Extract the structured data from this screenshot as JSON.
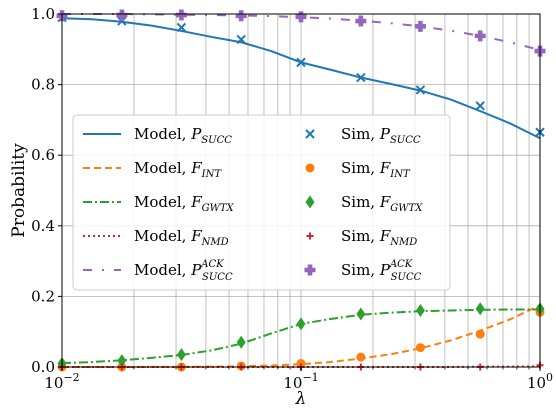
{
  "chart_data": {
    "type": "line",
    "title": "",
    "xlabel": "λ",
    "ylabel": "Probability",
    "xscale": "log",
    "xlim": [
      0.01,
      1.0
    ],
    "ylim": [
      0.0,
      1.0
    ],
    "grid": true,
    "legend_position": "center-left",
    "x_ticks": [
      {
        "value": 0.01,
        "base": "10",
        "exp": "−2"
      },
      {
        "value": 0.1,
        "base": "10",
        "exp": "−1"
      },
      {
        "value": 1.0,
        "base": "10",
        "exp": "0"
      }
    ],
    "y_ticks": [
      {
        "value": 0.0,
        "label": "0.0"
      },
      {
        "value": 0.2,
        "label": "0.2"
      },
      {
        "value": 0.4,
        "label": "0.4"
      },
      {
        "value": 0.6,
        "label": "0.6"
      },
      {
        "value": 0.8,
        "label": "0.8"
      },
      {
        "value": 1.0,
        "label": "1.0"
      }
    ],
    "model_x": [
      0.01,
      0.0133,
      0.0178,
      0.0237,
      0.0316,
      0.0422,
      0.0562,
      0.075,
      0.1,
      0.133,
      0.178,
      0.237,
      0.316,
      0.422,
      0.562,
      0.75,
      1.0
    ],
    "sim_x": [
      0.01,
      0.0178,
      0.0316,
      0.0562,
      0.1,
      0.178,
      0.316,
      0.562,
      1.0
    ],
    "series": [
      {
        "name": "Model, P",
        "sub": "SUCC",
        "sup": "",
        "kind": "model",
        "color": "#1f77b4",
        "dash": "solid",
        "values": [
          0.988,
          0.985,
          0.978,
          0.967,
          0.952,
          0.935,
          0.92,
          0.895,
          0.863,
          0.842,
          0.82,
          0.802,
          0.783,
          0.758,
          0.725,
          0.69,
          0.648
        ]
      },
      {
        "name": "Model, F",
        "sub": "INT",
        "sup": "",
        "kind": "model",
        "color": "#ff7f0e",
        "dash": "dashed",
        "values": [
          0.0,
          0.0,
          0.0,
          0.0002,
          0.0005,
          0.001,
          0.002,
          0.004,
          0.008,
          0.014,
          0.024,
          0.036,
          0.053,
          0.075,
          0.103,
          0.135,
          0.175
        ]
      },
      {
        "name": "Model, F",
        "sub": "GWTX",
        "sup": "",
        "kind": "model",
        "color": "#2ca02c",
        "dash": "dashdot",
        "values": [
          0.011,
          0.014,
          0.019,
          0.026,
          0.034,
          0.047,
          0.066,
          0.095,
          0.122,
          0.136,
          0.148,
          0.154,
          0.158,
          0.16,
          0.162,
          0.163,
          0.163
        ]
      },
      {
        "name": "Model, F",
        "sub": "NMD",
        "sup": "",
        "kind": "model",
        "color": "#d62728",
        "dash": "dotted",
        "values": [
          0.0,
          0.0,
          0.0,
          0.0,
          0.0,
          0.0,
          0.0,
          0.0,
          0.0,
          0.0,
          0.0,
          0.0,
          0.0,
          0.0,
          0.001,
          0.001,
          0.002
        ]
      },
      {
        "name": "Model, P",
        "sub": "SUCC",
        "sup": "ACK",
        "kind": "model",
        "color": "#9467bd",
        "dash": "loosedashdot",
        "values": [
          1.0,
          1.0,
          1.0,
          0.999,
          0.998,
          0.997,
          0.996,
          0.994,
          0.991,
          0.987,
          0.981,
          0.974,
          0.965,
          0.953,
          0.938,
          0.92,
          0.898
        ]
      },
      {
        "name": "Sim, P",
        "sub": "SUCC",
        "sup": "",
        "kind": "sim",
        "color": "#1f77b4",
        "marker": "x",
        "values": [
          0.99,
          0.98,
          0.962,
          0.928,
          0.863,
          0.82,
          0.785,
          0.74,
          0.665
        ]
      },
      {
        "name": "Sim, F",
        "sub": "INT",
        "sup": "",
        "kind": "sim",
        "color": "#ff7f0e",
        "marker": "circle",
        "values": [
          0.0,
          0.0,
          0.0,
          0.003,
          0.01,
          0.028,
          0.055,
          0.093,
          0.155
        ]
      },
      {
        "name": "Sim, F",
        "sub": "GWTX",
        "sup": "",
        "kind": "sim",
        "color": "#2ca02c",
        "marker": "diamond",
        "values": [
          0.01,
          0.018,
          0.035,
          0.07,
          0.122,
          0.15,
          0.16,
          0.165,
          0.165
        ]
      },
      {
        "name": "Sim, F",
        "sub": "NMD",
        "sup": "",
        "kind": "sim",
        "color": "#d62728",
        "marker": "plus",
        "values": [
          0.0,
          0.0,
          0.0,
          0.0,
          0.0,
          0.0,
          0.0,
          0.0,
          0.005
        ]
      },
      {
        "name": "Sim, P",
        "sub": "SUCC",
        "sup": "ACK",
        "kind": "sim",
        "color": "#9467bd",
        "marker": "plusfilled",
        "values": [
          0.995,
          0.997,
          0.997,
          0.995,
          0.992,
          0.98,
          0.965,
          0.938,
          0.895
        ]
      }
    ]
  }
}
